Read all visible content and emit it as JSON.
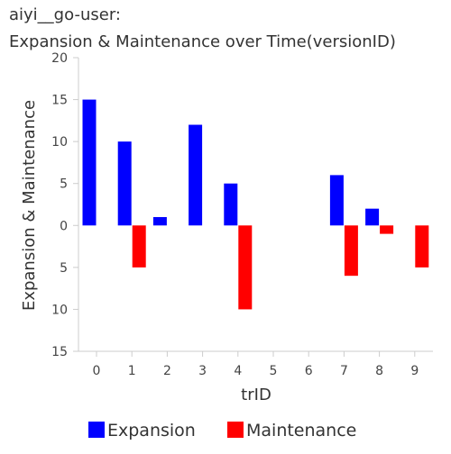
{
  "chart_data": {
    "type": "bar",
    "title": [
      "aiyi__go-user:",
      "Expansion & Maintenance over Time(versionID)"
    ],
    "xlabel": "trID",
    "ylabel": "Expansion & Maintenance",
    "categories": [
      "0",
      "1",
      "2",
      "3",
      "4",
      "5",
      "6",
      "7",
      "8",
      "9"
    ],
    "series": [
      {
        "name": "Expansion",
        "color": "#0000ff",
        "values": [
          15,
          10,
          1,
          12,
          5,
          0,
          0,
          6,
          2,
          0
        ]
      },
      {
        "name": "Maintenance",
        "color": "#ff0000",
        "values": [
          0,
          -5,
          0,
          0,
          -10,
          0,
          0,
          -6,
          -1,
          -5
        ]
      }
    ],
    "ylim": [
      -15,
      20
    ],
    "yticks": [
      20,
      15,
      10,
      5,
      0,
      -5,
      -10,
      -15
    ],
    "ytick_labels": [
      "20",
      "15",
      "10",
      "5",
      "0",
      "5",
      "10",
      "15"
    ],
    "grid": false,
    "legend_position": "bottom"
  }
}
